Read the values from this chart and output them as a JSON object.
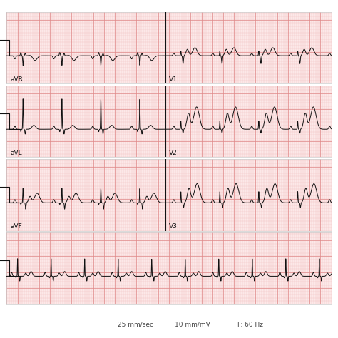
{
  "background_color": "#fce8e8",
  "grid_minor_color": "#f0b8b8",
  "grid_major_color": "#e08888",
  "ecg_color": "#111111",
  "label_color": "#111111",
  "border_color": "#cccccc",
  "footer_text_1": "25 mm/sec",
  "footer_text_2": "10 mm/mV",
  "footer_text_3": "F: 60 Hz",
  "fig_width": 4.74,
  "fig_height": 4.74,
  "dpi": 100
}
